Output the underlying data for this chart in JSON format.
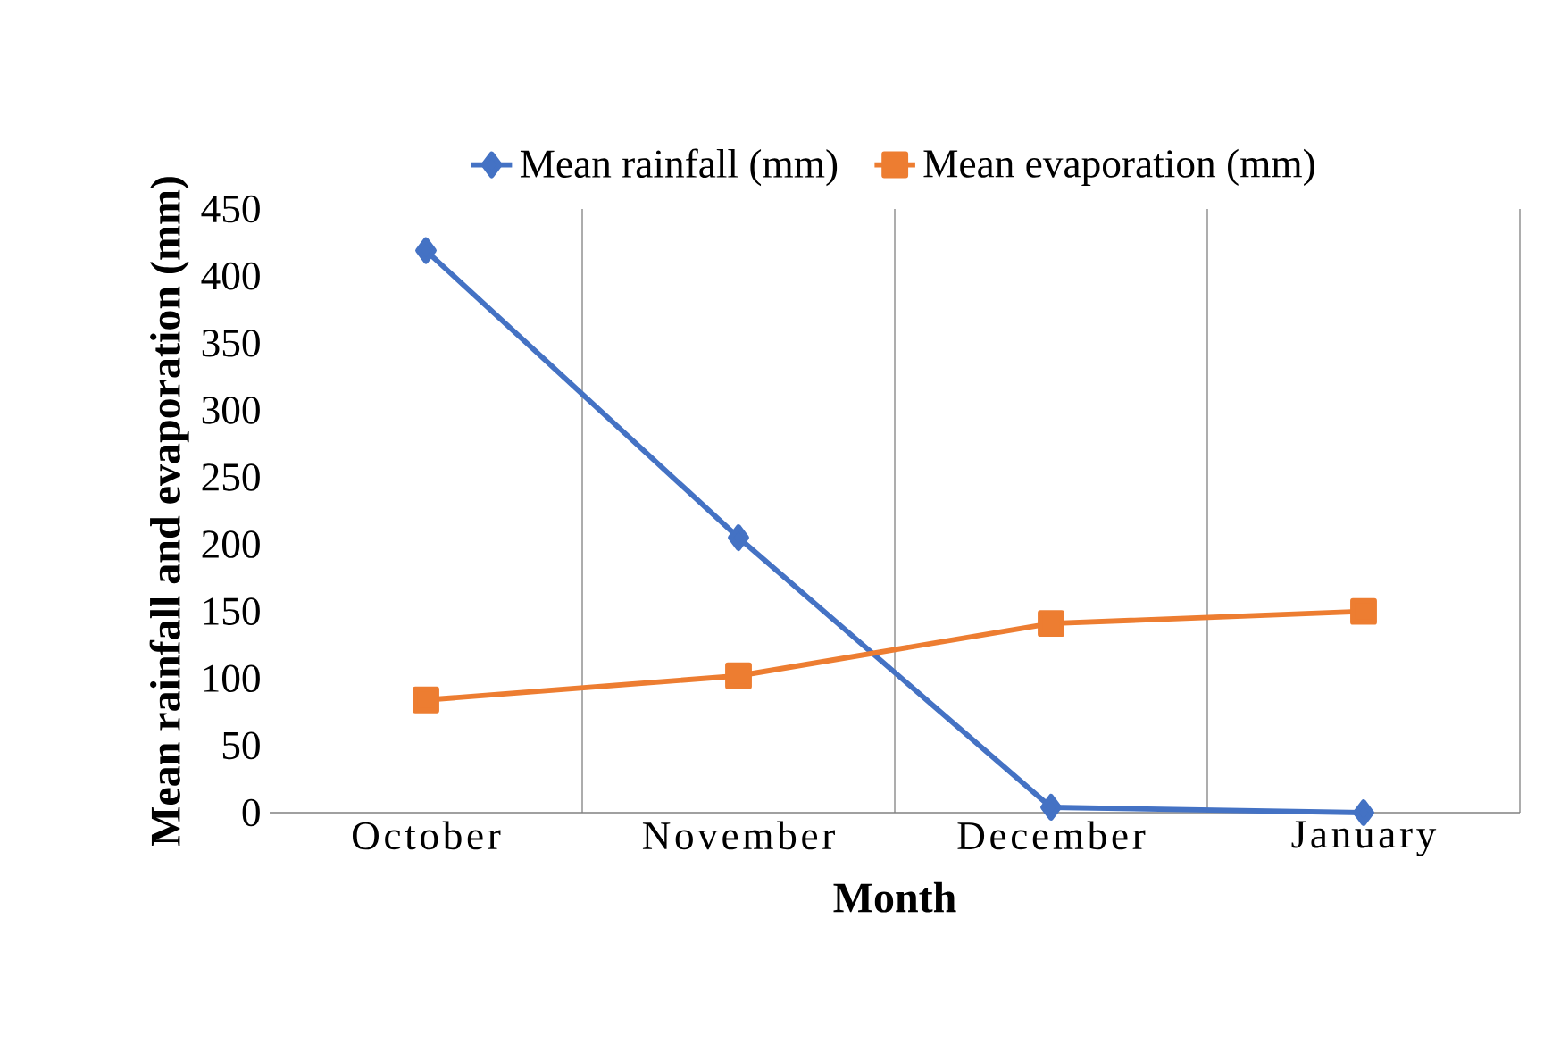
{
  "chart_data": {
    "type": "line",
    "xlabel": "Month",
    "ylabel": "Mean rainfall and evaporation (mm)",
    "categories": [
      "October",
      "November",
      "December",
      "January"
    ],
    "series": [
      {
        "name": "Mean rainfall (mm)",
        "color": "#4472c4",
        "marker": "diamond",
        "values": [
          419,
          205,
          4,
          0
        ]
      },
      {
        "name": "Mean evaporation (mm)",
        "color": "#ed7d31",
        "marker": "square",
        "values": [
          84,
          102,
          141,
          150
        ]
      }
    ],
    "ylim": [
      0,
      450
    ],
    "yticks": [
      0,
      50,
      100,
      150,
      200,
      250,
      300,
      350,
      400,
      450
    ],
    "grid": "x",
    "legend": "top",
    "line_style": "solid"
  }
}
